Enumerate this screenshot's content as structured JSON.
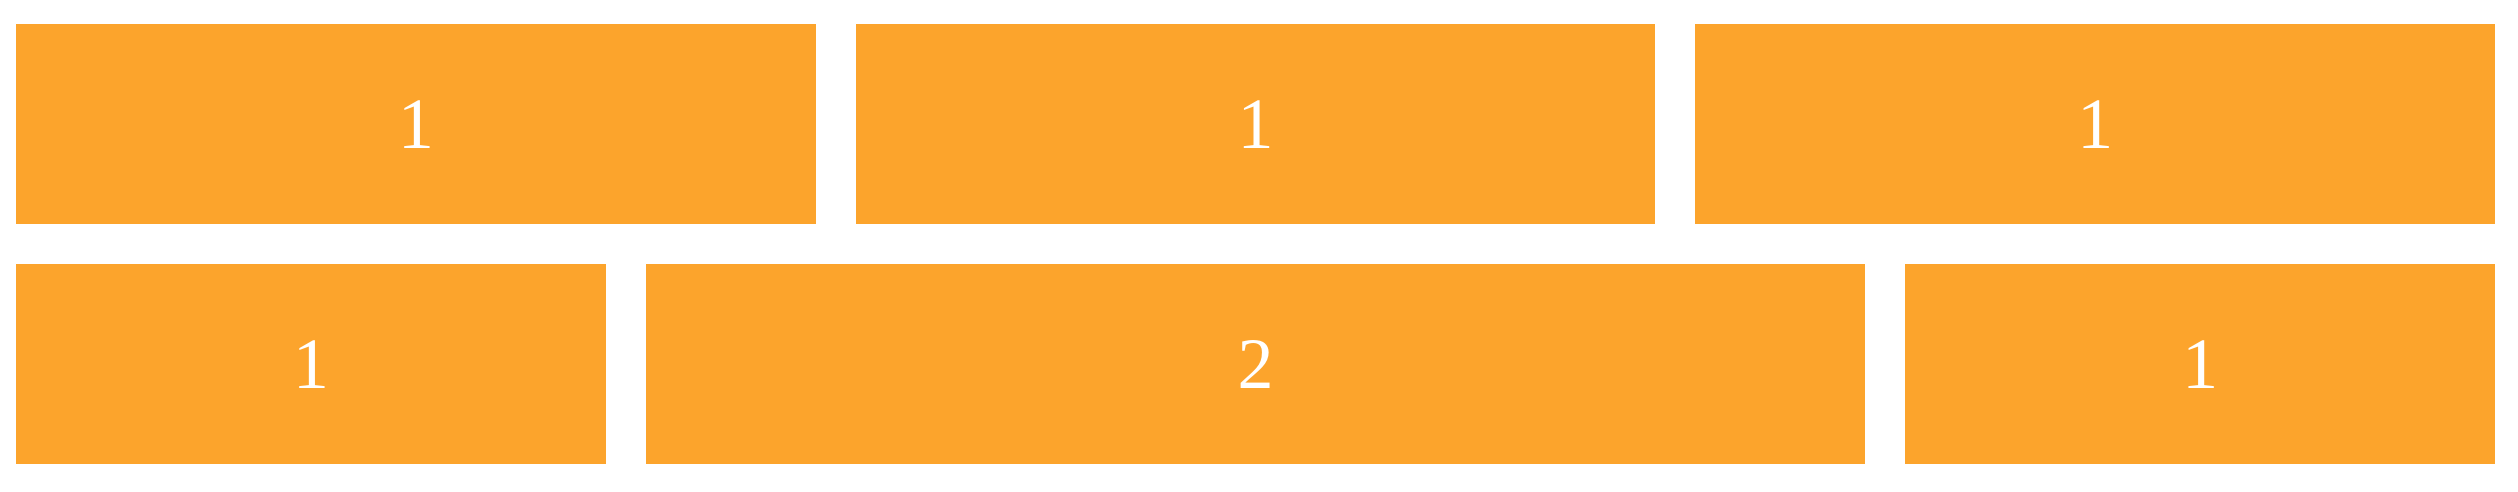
{
  "accent_color": "#fca42c",
  "text_color": "#ffffff",
  "rows": [
    {
      "cells": [
        {
          "label": "1"
        },
        {
          "label": "1"
        },
        {
          "label": "1"
        }
      ]
    },
    {
      "cells": [
        {
          "label": "1"
        },
        {
          "label": "2"
        },
        {
          "label": "1"
        }
      ]
    }
  ]
}
